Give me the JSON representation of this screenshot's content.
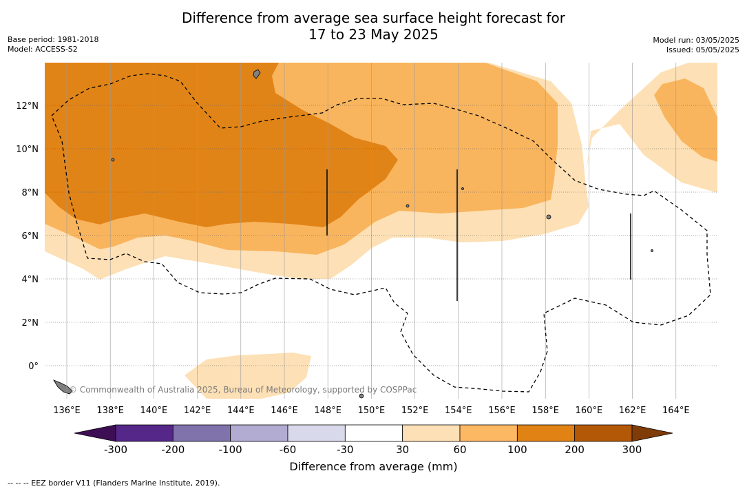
{
  "header": {
    "title_line1": "Difference from average sea surface height forecast for",
    "title_line2": "17 to 23 May 2025",
    "base_period": "Base period: 1981-2018",
    "model": "Model: ACCESS-S2",
    "model_run": "Model run: 03/05/2025",
    "issued": "Issued: 05/05/2025"
  },
  "map": {
    "lon_labels": [
      "136°E",
      "138°E",
      "140°E",
      "142°E",
      "144°E",
      "146°E",
      "148°E",
      "150°E",
      "152°E",
      "154°E",
      "156°E",
      "158°E",
      "160°E",
      "162°E",
      "164°E"
    ],
    "lat_labels": [
      "12°N",
      "10°N",
      "8°N",
      "6°N",
      "4°N",
      "2°N",
      "0°"
    ],
    "copyright": "© Commonwealth of Australia 2025, Bureau of Meteorology, supported by COSPPac",
    "colors": {
      "band_30_60": "#fde0b5",
      "band_60_100": "#f9b55e",
      "band_100_200": "#e18417",
      "land": "#808080"
    }
  },
  "colorbar": {
    "title": "Difference from average (mm)",
    "tick_labels": [
      "-300",
      "-200",
      "-100",
      "-60",
      "-30",
      "30",
      "60",
      "100",
      "200",
      "300"
    ],
    "colors": [
      "#3e0e54",
      "#542788",
      "#8073ac",
      "#b2abd2",
      "#d8daeb",
      "#ffffff",
      "#fee0b6",
      "#fdb863",
      "#e08214",
      "#b35806",
      "#7f3b08"
    ]
  },
  "footnote": "--  --  -- EEZ border V11 (Flanders Marine Institute, 2019)."
}
